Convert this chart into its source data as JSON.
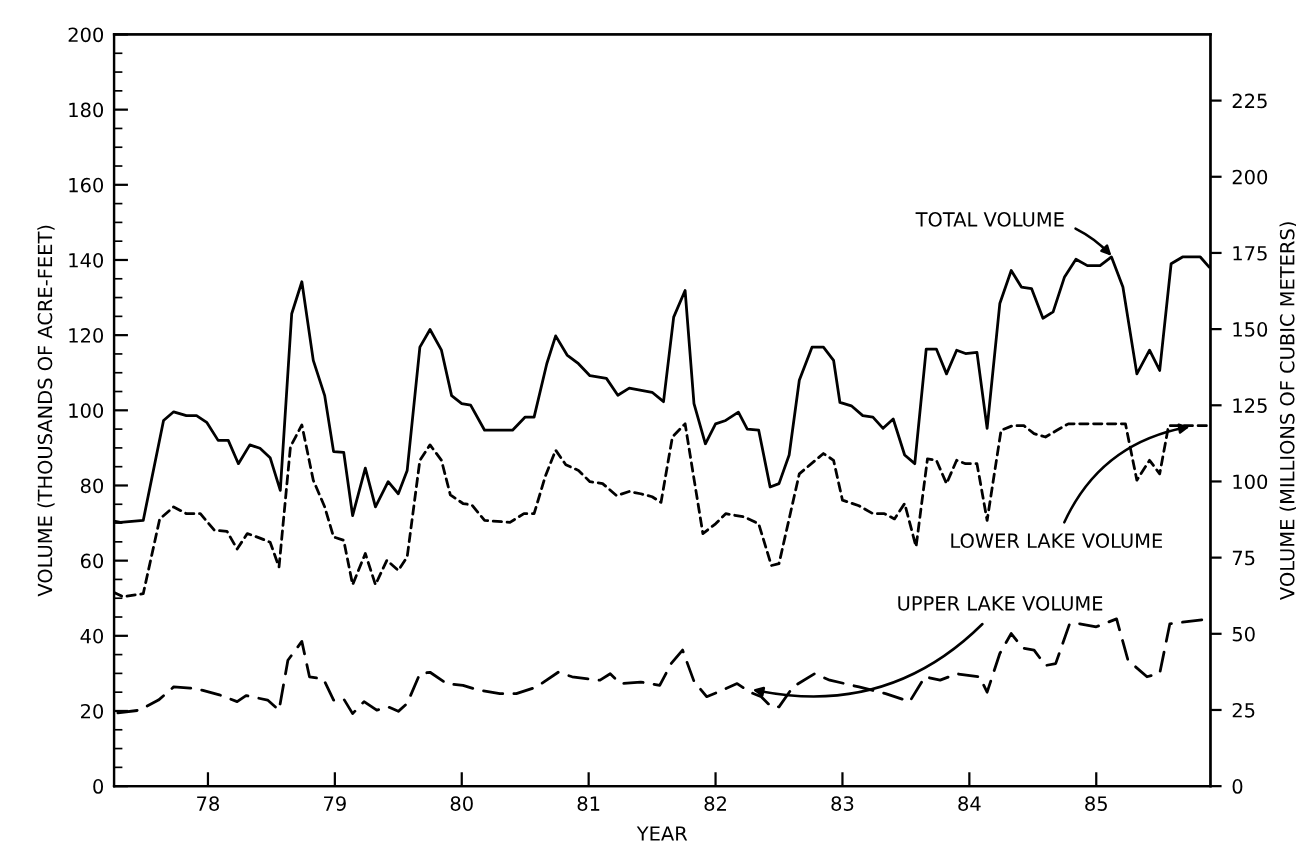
{
  "chart_data": {
    "type": "line",
    "xlabel": "YEAR",
    "ylabel": "VOLUME (THOUSANDS OF ACRE-FEET)",
    "y2label": "VOLUME (MILLIONS OF CUBIC METERS)",
    "xlim": [
      77.26,
      85.9
    ],
    "xticks": [
      {
        "value": 78,
        "label": "78"
      },
      {
        "value": 79,
        "label": "79"
      },
      {
        "value": 80,
        "label": "80"
      },
      {
        "value": 81,
        "label": "81"
      },
      {
        "value": 82,
        "label": "82"
      },
      {
        "value": 83,
        "label": "83"
      },
      {
        "value": 84,
        "label": "84"
      },
      {
        "value": 85,
        "label": "85"
      }
    ],
    "ylim": [
      0,
      200
    ],
    "yticks": [
      0,
      20,
      40,
      60,
      80,
      100,
      120,
      140,
      160,
      180,
      200
    ],
    "y2lim": [
      0,
      246.7
    ],
    "y2ticks": [
      0,
      25,
      50,
      75,
      100,
      125,
      150,
      175,
      200,
      225
    ],
    "grid": false,
    "marker": "none",
    "series": [
      {
        "color": "#000000",
        "line_style": "solid",
        "x": [
          77.26,
          77.31,
          77.49,
          77.65,
          77.73,
          77.83,
          77.91,
          77.99,
          78.08,
          78.16,
          78.24,
          78.33,
          78.41,
          78.49,
          78.57,
          78.66,
          78.74,
          78.83,
          78.92,
          78.99,
          79.07,
          79.14,
          79.24,
          79.32,
          79.42,
          79.5,
          79.57,
          79.67,
          79.75,
          79.84,
          79.92,
          80.0,
          80.07,
          80.18,
          80.4,
          80.5,
          80.57,
          80.67,
          80.74,
          80.83,
          80.92,
          81.01,
          81.14,
          81.23,
          81.32,
          81.5,
          81.59,
          81.67,
          81.76,
          81.83,
          81.92,
          82.0,
          82.08,
          82.18,
          82.25,
          82.34,
          82.43,
          82.5,
          82.58,
          82.66,
          82.76,
          82.85,
          82.93,
          82.98,
          83.07,
          83.16,
          83.24,
          83.32,
          83.4,
          83.49,
          83.57,
          83.66,
          83.74,
          83.82,
          83.9,
          83.97,
          84.06,
          84.14,
          84.24,
          84.33,
          84.41,
          84.49,
          84.58,
          84.66,
          84.75,
          84.84,
          84.93,
          85.03,
          85.12,
          85.21,
          85.32,
          85.42,
          85.5,
          85.59,
          85.68,
          85.82,
          85.89
        ],
        "values": [
          70.5,
          70.2,
          70.7,
          97.3,
          99.6,
          98.6,
          98.6,
          96.8,
          92,
          92,
          85.8,
          90.8,
          89.9,
          87.4,
          78.7,
          125.7,
          134.2,
          113.3,
          103.9,
          89,
          88.8,
          72,
          84.6,
          74.3,
          81,
          77.8,
          84,
          116.8,
          121.5,
          116,
          103.9,
          101.8,
          101.4,
          94.7,
          94.7,
          98.2,
          98.2,
          112.4,
          119.8,
          114.7,
          112.4,
          109.2,
          108.5,
          104,
          105.9,
          104.8,
          102.3,
          124.8,
          131.9,
          101.8,
          91.1,
          96.4,
          97.3,
          99.5,
          95,
          94.7,
          79.6,
          80.5,
          88.1,
          108,
          116.8,
          116.8,
          113.3,
          102.1,
          101.2,
          98.6,
          98.2,
          95.2,
          97.7,
          88.1,
          85.8,
          116.3,
          116.3,
          109.7,
          116,
          115.1,
          115.4,
          95.2,
          128.4,
          137.2,
          132.8,
          132.4,
          124.5,
          126.2,
          135.5,
          140.2,
          138.5,
          138.5,
          140.8,
          132.8,
          109.7,
          116,
          110.6,
          139,
          140.8,
          140.8,
          138.1
        ]
      },
      {
        "color": "#000000",
        "line_style": "dashed",
        "x": [
          77.26,
          77.33,
          77.49,
          77.62,
          77.73,
          77.83,
          77.94,
          78.05,
          78.15,
          78.23,
          78.31,
          78.41,
          78.49,
          78.56,
          78.65,
          78.74,
          78.83,
          78.92,
          78.99,
          79.07,
          79.14,
          79.24,
          79.32,
          79.41,
          79.5,
          79.57,
          79.67,
          79.75,
          79.84,
          79.91,
          80.01,
          80.08,
          80.18,
          80.38,
          80.49,
          80.57,
          80.66,
          80.74,
          80.82,
          80.92,
          81.01,
          81.11,
          81.22,
          81.32,
          81.41,
          81.5,
          81.57,
          81.66,
          81.76,
          81.9,
          82.0,
          82.08,
          82.23,
          82.34,
          82.44,
          82.5,
          82.66,
          82.85,
          82.93,
          83.0,
          83.13,
          83.24,
          83.33,
          83.41,
          83.49,
          83.58,
          83.67,
          83.74,
          83.82,
          83.9,
          83.97,
          84.06,
          84.14,
          84.25,
          84.34,
          84.43,
          84.51,
          84.6,
          84.69,
          84.78,
          85.23,
          85.32,
          85.42,
          85.5,
          85.57,
          85.89
        ],
        "values": [
          51.5,
          50.4,
          51.2,
          71.1,
          74.3,
          72.5,
          72.5,
          68.1,
          67.8,
          63.1,
          67.2,
          66,
          64.9,
          58.3,
          90.3,
          96.1,
          81.4,
          74.3,
          66.3,
          65.4,
          53.6,
          61.9,
          53.6,
          60.1,
          57.4,
          61,
          86.7,
          90.8,
          86.7,
          77.5,
          75.2,
          74.8,
          70.7,
          70.2,
          72.5,
          72.5,
          82.6,
          89.4,
          85.5,
          84,
          81,
          80.5,
          77.3,
          78.4,
          77.8,
          77,
          75.5,
          92.9,
          96.4,
          67.2,
          69.8,
          72.5,
          71.6,
          69.8,
          58.7,
          59.2,
          83.1,
          88.5,
          86.7,
          76.1,
          74.6,
          72.5,
          72.5,
          71.1,
          75.2,
          63.7,
          87.1,
          86.7,
          80.5,
          86.7,
          85.8,
          85.8,
          70.7,
          94.7,
          95.9,
          95.9,
          93.8,
          92.9,
          94.7,
          96.4,
          96.4,
          81.4,
          86.7,
          83.1,
          95.9,
          95.9
        ]
      },
      {
        "color": "#000000",
        "line_style": "dashed",
        "x": [
          77.29,
          77.46,
          77.61,
          77.73,
          77.86,
          77.96,
          78.09,
          78.23,
          78.3,
          78.47,
          78.56,
          78.63,
          78.74,
          78.8,
          78.91,
          78.99,
          79.07,
          79.14,
          79.23,
          79.33,
          79.42,
          79.5,
          79.57,
          79.67,
          79.75,
          79.88,
          80.01,
          80.14,
          80.3,
          80.43,
          80.59,
          80.76,
          80.87,
          81.01,
          81.09,
          81.17,
          81.25,
          81.41,
          81.56,
          81.65,
          81.74,
          81.83,
          81.93,
          82.03,
          82.17,
          82.27,
          82.36,
          82.44,
          82.5,
          82.61,
          82.78,
          82.9,
          83.13,
          83.34,
          83.53,
          83.65,
          83.77,
          83.9,
          84.08,
          84.14,
          84.24,
          84.33,
          84.42,
          84.51,
          84.6,
          84.68,
          84.79,
          84.87,
          85.0,
          85.16,
          85.25,
          85.4,
          85.5,
          85.58,
          85.89
        ],
        "values": [
          19.5,
          20.2,
          22.9,
          26.4,
          26.1,
          25.5,
          24.3,
          22.5,
          24.1,
          22.9,
          20.2,
          33.5,
          38.5,
          29.1,
          28.5,
          22.9,
          23.2,
          19.3,
          22.5,
          20.2,
          21.1,
          19.9,
          22,
          29.9,
          30.3,
          27.3,
          26.8,
          25.5,
          24.6,
          24.6,
          26.4,
          30.3,
          29.1,
          28.5,
          28.2,
          29.9,
          27.3,
          27.7,
          26.8,
          32.6,
          36.2,
          27.9,
          23.8,
          25.2,
          27.3,
          25,
          23.8,
          21.1,
          21.1,
          26.4,
          29.9,
          28.2,
          26.4,
          24.6,
          22.5,
          29.1,
          28.2,
          29.9,
          29.1,
          25,
          35.3,
          40.6,
          36.7,
          36.2,
          32.1,
          32.6,
          43.2,
          43.2,
          42.4,
          44.5,
          33.5,
          29.1,
          30,
          43.2,
          44.5
        ]
      }
    ],
    "annotations": [
      {
        "text": "TOTAL VOLUME",
        "x": 85.15,
        "y": 140
      },
      {
        "text": "LOWER LAKE VOLUME",
        "x": 85.78,
        "y": 95.9
      },
      {
        "text": "UPPER LAKE VOLUME",
        "x": 82.25,
        "y": 26
      }
    ]
  }
}
